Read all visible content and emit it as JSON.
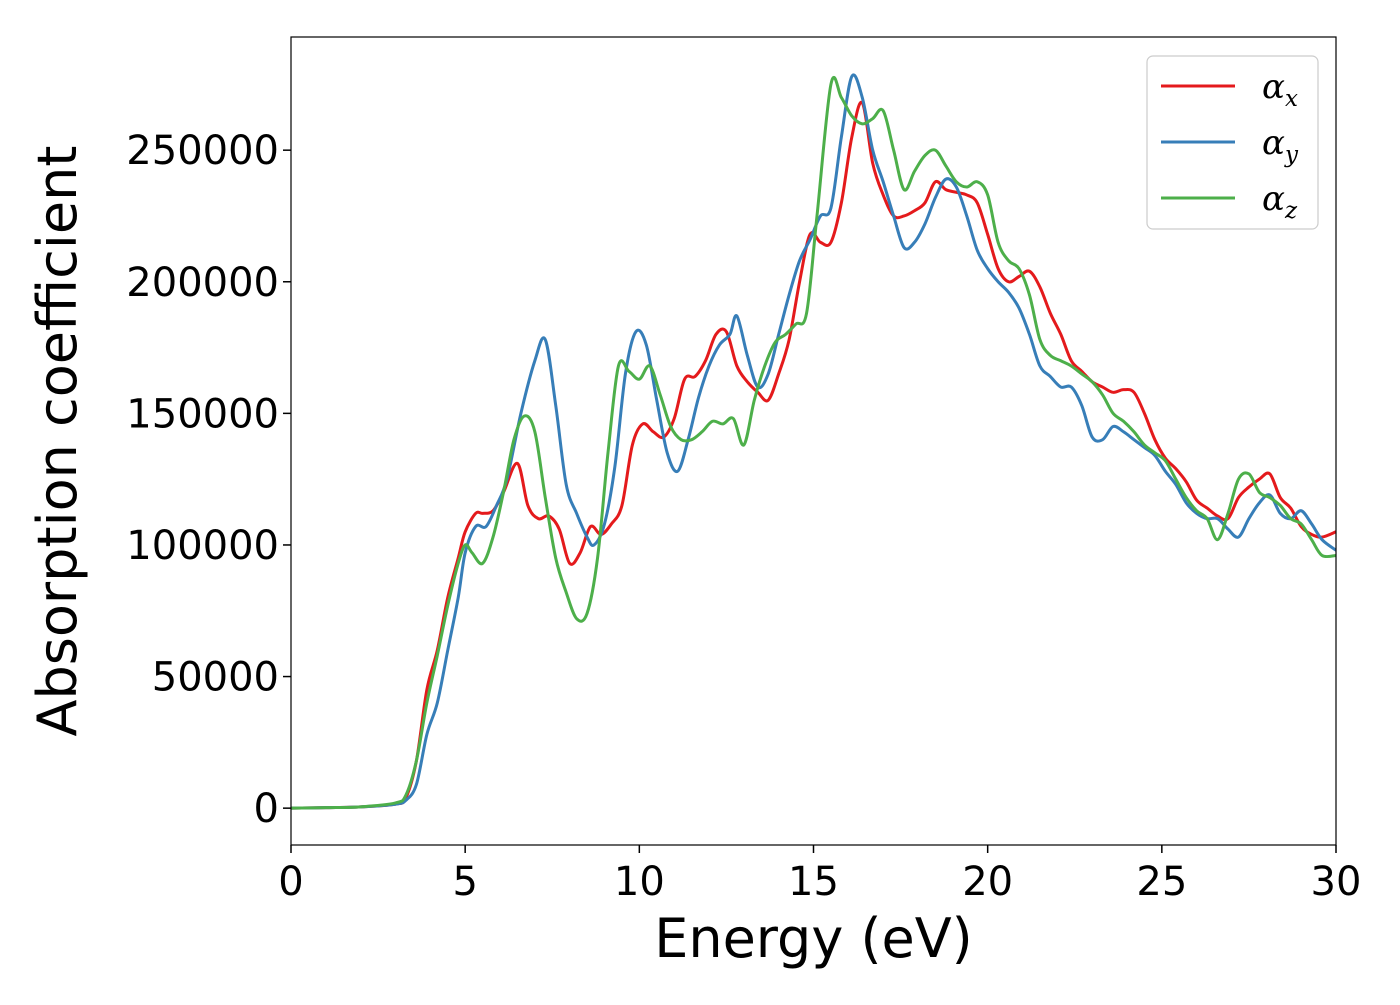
{
  "chart_data": {
    "type": "line",
    "xlabel": "Energy (eV)",
    "ylabel": "Absorption coefficient",
    "xlim": [
      0,
      30
    ],
    "ylim": [
      -14000,
      293000
    ],
    "xticks": [
      0,
      5,
      10,
      15,
      20,
      25,
      30
    ],
    "xtick_labels": [
      "0",
      "5",
      "10",
      "15",
      "20",
      "25",
      "30"
    ],
    "yticks": [
      0,
      50000,
      100000,
      150000,
      200000,
      250000
    ],
    "ytick_labels": [
      "0",
      "50000",
      "100000",
      "150000",
      "200000",
      "250000"
    ],
    "grid": false,
    "legend_position": "top-right",
    "series": [
      {
        "name": "αx",
        "symbol": "α",
        "subscript": "x",
        "color": "#e41a1c",
        "x": [
          0,
          1,
          2,
          3,
          3.3,
          3.6,
          3.9,
          4.2,
          4.5,
          4.8,
          5.0,
          5.3,
          5.5,
          5.8,
          6.1,
          6.5,
          6.8,
          7.1,
          7.4,
          7.7,
          8.0,
          8.3,
          8.6,
          8.9,
          9.2,
          9.5,
          9.8,
          10.1,
          10.4,
          10.7,
          11.0,
          11.3,
          11.6,
          11.9,
          12.2,
          12.5,
          12.8,
          13.1,
          13.4,
          13.7,
          14.0,
          14.3,
          14.6,
          14.9,
          15.2,
          15.5,
          15.8,
          16.1,
          16.4,
          16.7,
          17.0,
          17.3,
          17.6,
          17.9,
          18.2,
          18.5,
          18.8,
          19.1,
          19.4,
          19.7,
          20.0,
          20.3,
          20.6,
          20.9,
          21.2,
          21.5,
          21.8,
          22.1,
          22.4,
          22.7,
          23.0,
          23.3,
          23.6,
          23.9,
          24.2,
          24.5,
          24.8,
          25.1,
          25.4,
          25.7,
          26.0,
          26.3,
          26.6,
          26.9,
          27.2,
          27.5,
          27.8,
          28.1,
          28.4,
          28.7,
          29.0,
          29.3,
          29.6,
          30.0
        ],
        "y": [
          0,
          200,
          500,
          1500,
          4000,
          18000,
          45000,
          60000,
          80000,
          95000,
          105000,
          112000,
          112000,
          113000,
          120000,
          131000,
          115000,
          110000,
          111000,
          106000,
          93000,
          97000,
          107000,
          104000,
          108000,
          115000,
          138000,
          146000,
          143000,
          141000,
          148000,
          163000,
          164000,
          170000,
          180000,
          181000,
          168000,
          162000,
          158000,
          155000,
          165000,
          178000,
          200000,
          218000,
          215000,
          215000,
          230000,
          255000,
          268000,
          245000,
          233000,
          225000,
          225000,
          227000,
          230000,
          238000,
          235000,
          234000,
          233000,
          230000,
          218000,
          205000,
          200000,
          202000,
          204000,
          198000,
          188000,
          180000,
          170000,
          166000,
          162000,
          160000,
          158000,
          159000,
          158000,
          150000,
          140000,
          133000,
          129000,
          124000,
          117000,
          114000,
          111000,
          110000,
          118000,
          122000,
          125000,
          127000,
          118000,
          114000,
          107000,
          104000,
          103000,
          105000
        ]
      },
      {
        "name": "αy",
        "symbol": "α",
        "subscript": "y",
        "color": "#377eb8",
        "x": [
          0,
          1,
          2,
          3,
          3.3,
          3.6,
          3.9,
          4.2,
          4.5,
          4.8,
          5.0,
          5.3,
          5.6,
          5.9,
          6.2,
          6.6,
          7.0,
          7.3,
          7.6,
          7.9,
          8.2,
          8.5,
          8.7,
          9.0,
          9.3,
          9.6,
          9.9,
          10.2,
          10.5,
          10.8,
          11.1,
          11.4,
          11.7,
          12.0,
          12.3,
          12.6,
          12.8,
          13.1,
          13.4,
          13.7,
          14.0,
          14.3,
          14.6,
          14.9,
          15.2,
          15.5,
          15.8,
          16.1,
          16.4,
          16.7,
          17.0,
          17.3,
          17.6,
          17.9,
          18.2,
          18.5,
          18.8,
          19.1,
          19.4,
          19.7,
          20.0,
          20.3,
          20.6,
          20.9,
          21.2,
          21.5,
          21.8,
          22.1,
          22.4,
          22.7,
          23.0,
          23.3,
          23.6,
          23.9,
          24.2,
          24.5,
          24.8,
          25.1,
          25.4,
          25.7,
          26.0,
          26.3,
          26.6,
          26.9,
          27.2,
          27.5,
          27.8,
          28.1,
          28.4,
          28.7,
          29.0,
          29.3,
          29.6,
          30.0
        ],
        "y": [
          0,
          200,
          500,
          1500,
          3000,
          9000,
          28000,
          40000,
          60000,
          80000,
          97000,
          107000,
          107000,
          115000,
          125000,
          150000,
          170000,
          178000,
          153000,
          123000,
          112000,
          103000,
          100000,
          108000,
          130000,
          165000,
          181000,
          176000,
          155000,
          135000,
          128000,
          140000,
          156000,
          168000,
          176000,
          180000,
          187000,
          172000,
          160000,
          165000,
          180000,
          195000,
          208000,
          216000,
          225000,
          228000,
          255000,
          278000,
          270000,
          250000,
          238000,
          225000,
          213000,
          215000,
          222000,
          232000,
          239000,
          236000,
          225000,
          212000,
          205000,
          200000,
          196000,
          190000,
          180000,
          168000,
          164000,
          160000,
          160000,
          153000,
          141000,
          140000,
          145000,
          143000,
          140000,
          137000,
          134000,
          128000,
          123000,
          116000,
          112000,
          110000,
          110000,
          106000,
          103000,
          110000,
          116000,
          119000,
          112000,
          110000,
          113000,
          108000,
          102000,
          98000
        ]
      },
      {
        "name": "αz",
        "symbol": "α",
        "subscript": "z",
        "color": "#4daf4a",
        "x": [
          0,
          1,
          2,
          3,
          3.3,
          3.6,
          3.9,
          4.2,
          4.5,
          4.8,
          5.0,
          5.2,
          5.5,
          5.8,
          6.1,
          6.4,
          6.7,
          7.0,
          7.3,
          7.6,
          7.9,
          8.2,
          8.5,
          8.8,
          9.1,
          9.4,
          9.7,
          10.0,
          10.3,
          10.6,
          10.9,
          11.2,
          11.5,
          11.8,
          12.1,
          12.4,
          12.7,
          13.0,
          13.3,
          13.6,
          13.9,
          14.2,
          14.5,
          14.8,
          15.1,
          15.5,
          15.8,
          16.1,
          16.4,
          16.7,
          17.0,
          17.3,
          17.6,
          17.9,
          18.2,
          18.5,
          18.8,
          19.1,
          19.4,
          19.7,
          20.0,
          20.3,
          20.6,
          20.9,
          21.2,
          21.5,
          21.8,
          22.1,
          22.4,
          22.7,
          23.0,
          23.3,
          23.6,
          23.9,
          24.2,
          24.5,
          24.8,
          25.1,
          25.4,
          25.7,
          26.0,
          26.3,
          26.6,
          26.9,
          27.2,
          27.5,
          27.8,
          28.1,
          28.4,
          28.7,
          29.0,
          29.3,
          29.6,
          30.0
        ],
        "y": [
          0,
          200,
          500,
          2000,
          5000,
          18000,
          40000,
          58000,
          77000,
          93000,
          100000,
          97000,
          93000,
          103000,
          120000,
          140000,
          149000,
          143000,
          118000,
          95000,
          82000,
          72000,
          74000,
          95000,
          135000,
          168000,
          166000,
          163000,
          168000,
          157000,
          145000,
          140000,
          140000,
          143000,
          147000,
          146000,
          148000,
          138000,
          155000,
          168000,
          177000,
          180000,
          184000,
          188000,
          225000,
          275000,
          270000,
          263000,
          260000,
          262000,
          265000,
          250000,
          235000,
          242000,
          248000,
          250000,
          244000,
          238000,
          236000,
          238000,
          233000,
          215000,
          208000,
          205000,
          195000,
          178000,
          172000,
          170000,
          168000,
          165000,
          162000,
          157000,
          150000,
          147000,
          143000,
          138000,
          135000,
          132000,
          125000,
          118000,
          113000,
          110000,
          102000,
          112000,
          125000,
          127000,
          120000,
          118000,
          115000,
          110000,
          108000,
          102000,
          96000,
          96000
        ]
      }
    ]
  }
}
